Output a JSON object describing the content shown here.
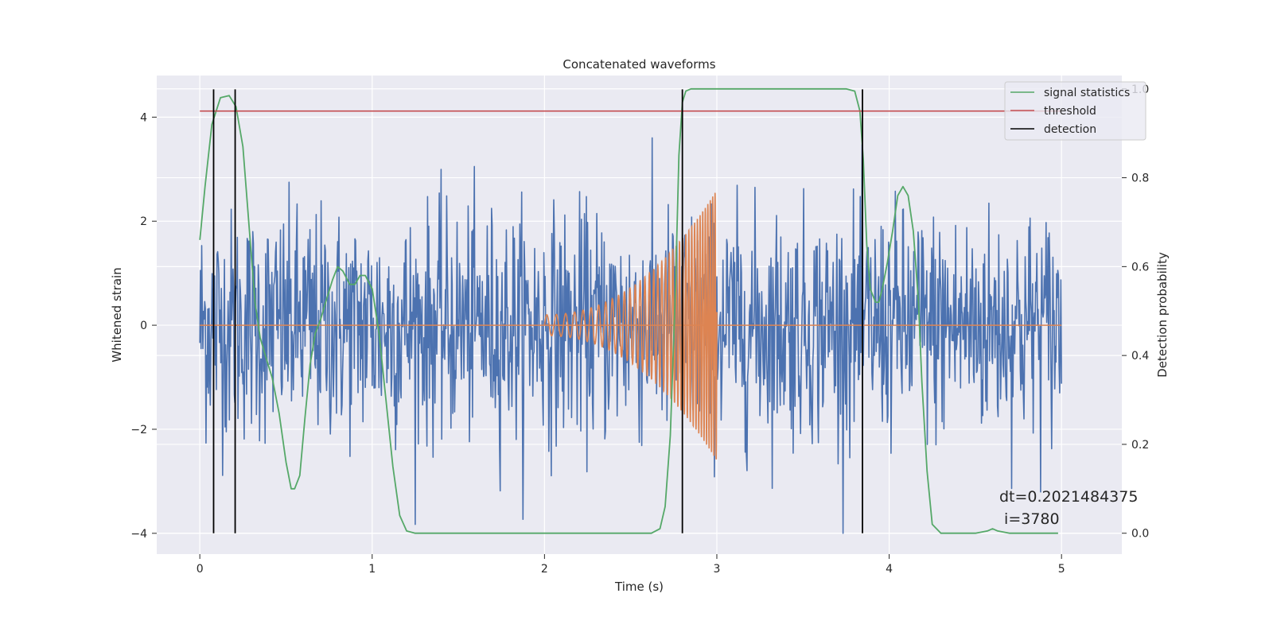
{
  "chart_data": {
    "type": "line",
    "title": "Concatenated waveforms",
    "xlabel": "Time (s)",
    "ylabel": "Whitened strain",
    "y2label": "Detection probability",
    "xlim": [
      -0.25,
      5.35
    ],
    "ylim": [
      -4.4,
      4.8
    ],
    "y2lim": [
      -0.047,
      1.03
    ],
    "x_ticks": [
      0,
      1,
      2,
      3,
      4,
      5
    ],
    "y_ticks": [
      -4,
      -2,
      0,
      2,
      4
    ],
    "y2_ticks": [
      0.0,
      0.2,
      0.4,
      0.6,
      0.8,
      1.0
    ],
    "x_tick_labels": [
      "0",
      "1",
      "2",
      "3",
      "4",
      "5"
    ],
    "y_tick_labels": [
      "−4",
      "−2",
      "0",
      "2",
      "4"
    ],
    "y2_tick_labels": [
      "0.0",
      "0.2",
      "0.4",
      "0.6",
      "0.8",
      "1.0"
    ],
    "grid": true,
    "background": "#eaeaf2",
    "legend_position": "upper-right",
    "noise": {
      "color": "#4c72b0",
      "x_range": [
        0,
        5
      ],
      "samples": 1400,
      "typical_amplitude": 1.1,
      "peak_amplitude": 4.0
    },
    "injection": {
      "color": "#dd8452",
      "start": 2.0,
      "end": 3.0,
      "start_frequency": 18,
      "end_frequency": 75,
      "start_amplitude": 0.2,
      "end_amplitude": 2.6
    },
    "series": [
      {
        "name": "signal statistics",
        "color": "#55a868",
        "axis": "right",
        "x": [
          0,
          0.03,
          0.07,
          0.12,
          0.17,
          0.21,
          0.25,
          0.28,
          0.3,
          0.32,
          0.35,
          0.38,
          0.42,
          0.46,
          0.5,
          0.53,
          0.55,
          0.58,
          0.61,
          0.64,
          0.67,
          0.7,
          0.73,
          0.77,
          0.8,
          0.83,
          0.87,
          0.9,
          0.93,
          0.96,
          1.0,
          1.04,
          1.08,
          1.12,
          1.16,
          1.2,
          1.25,
          1.5,
          2.0,
          2.5,
          2.62,
          2.67,
          2.7,
          2.73,
          2.76,
          2.78,
          2.8,
          2.82,
          2.85,
          2.9,
          3.0,
          3.5,
          3.75,
          3.8,
          3.83,
          3.85,
          3.87,
          3.89,
          3.92,
          3.94,
          3.96,
          3.99,
          4.02,
          4.05,
          4.08,
          4.11,
          4.14,
          4.17,
          4.19,
          4.22,
          4.25,
          4.3,
          4.5,
          4.57,
          4.6,
          4.63,
          4.7,
          4.98
        ],
        "y": [
          0.66,
          0.78,
          0.92,
          0.98,
          0.985,
          0.96,
          0.87,
          0.72,
          0.62,
          0.52,
          0.44,
          0.4,
          0.35,
          0.27,
          0.16,
          0.1,
          0.1,
          0.13,
          0.26,
          0.38,
          0.45,
          0.48,
          0.52,
          0.57,
          0.6,
          0.59,
          0.56,
          0.56,
          0.58,
          0.58,
          0.55,
          0.45,
          0.3,
          0.15,
          0.04,
          0.005,
          0.0,
          0.0,
          0.0,
          0.0,
          0.0,
          0.01,
          0.06,
          0.22,
          0.55,
          0.85,
          0.97,
          0.995,
          1.0,
          1.0,
          1.0,
          1.0,
          1.0,
          0.995,
          0.95,
          0.84,
          0.65,
          0.55,
          0.52,
          0.52,
          0.55,
          0.61,
          0.68,
          0.76,
          0.78,
          0.76,
          0.68,
          0.52,
          0.34,
          0.14,
          0.02,
          0.0,
          0.0,
          0.005,
          0.01,
          0.005,
          0.0,
          0.0
        ]
      },
      {
        "name": "threshold",
        "color": "#c44e52",
        "axis": "right",
        "x": [
          0,
          5
        ],
        "y": [
          0.95,
          0.95
        ]
      },
      {
        "name": "detection",
        "color": "#000000",
        "axis": "right",
        "x": [
          0.08,
          0.205,
          2.8,
          3.845
        ],
        "y_range": [
          0.0,
          0.999
        ]
      }
    ],
    "annotation": {
      "line1": "dt=0.2021484375",
      "line2": " i=3780"
    }
  }
}
